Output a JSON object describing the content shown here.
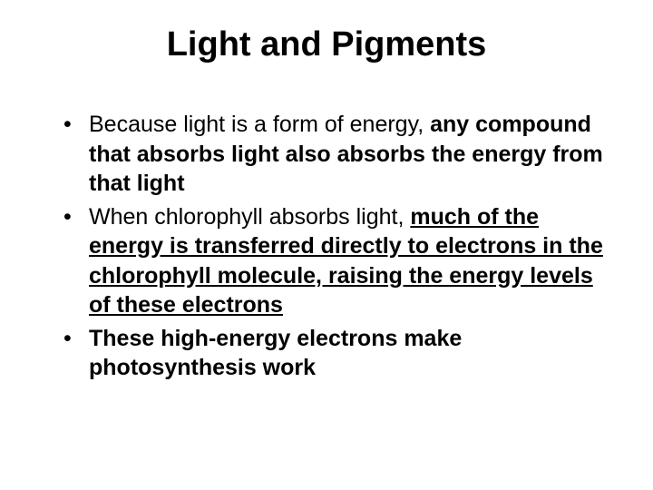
{
  "title": "Light and Pigments",
  "bullets": [
    {
      "prefix": "Because light is a form of energy, ",
      "bold": "any compound that absorbs light also absorbs the energy from that light"
    },
    {
      "prefix": "When chlorophyll absorbs light, ",
      "boldUnderline": "much of the energy is transferred directly to electrons in the chlorophyll molecule, raising the energy levels of these electrons"
    },
    {
      "bold": "These high-energy electrons make photosynthesis work"
    }
  ],
  "colors": {
    "background": "#ffffff",
    "text": "#000000"
  },
  "typography": {
    "title_fontsize": 38,
    "body_fontsize": 25,
    "font_family": "Arial"
  }
}
